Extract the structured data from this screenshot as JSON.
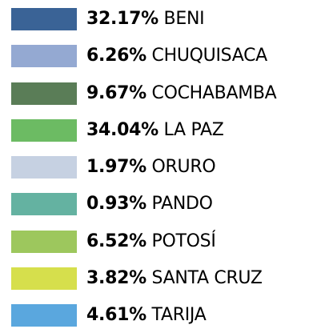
{
  "legend": {
    "items": [
      {
        "color": "#3a6396",
        "percent": "32.17%",
        "name": "BENI"
      },
      {
        "color": "#94a9d2",
        "percent": "6.26%",
        "name": "CHUQUISACA"
      },
      {
        "color": "#5a7d57",
        "percent": "9.67%",
        "name": "COCHABAMBA"
      },
      {
        "color": "#6cbb63",
        "percent": "34.04%",
        "name": "LA PAZ"
      },
      {
        "color": "#c6d1e2",
        "percent": "1.97%",
        "name": "ORURO"
      },
      {
        "color": "#64b2a1",
        "percent": "0.93%",
        "name": "PANDO"
      },
      {
        "color": "#9dc75d",
        "percent": "6.52%",
        "name": "POTOSÍ"
      },
      {
        "color": "#d6df4c",
        "percent": "3.82%",
        "name": "SANTA CRUZ"
      },
      {
        "color": "#5aa7de",
        "percent": "4.61%",
        "name": "TARIJA"
      }
    ]
  }
}
